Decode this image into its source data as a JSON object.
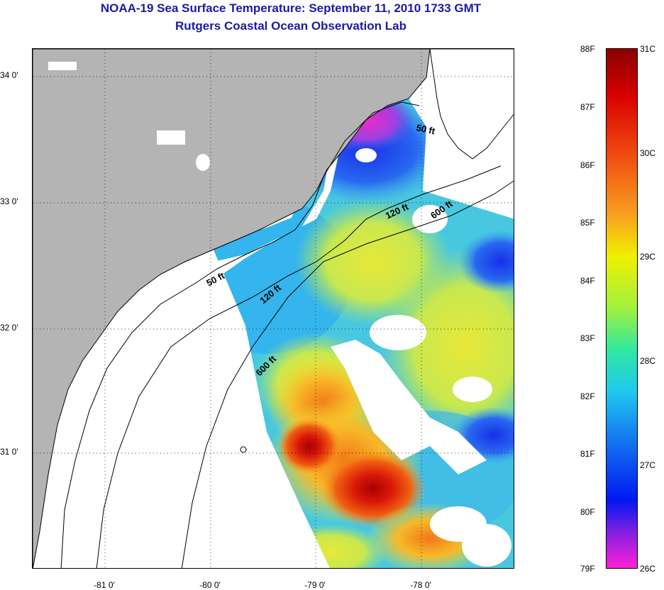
{
  "header": {
    "title": "NOAA-19 Sea Surface Temperature:  September 11, 2010 1733 GMT",
    "subtitle": "Rutgers Coastal Ocean Observation Lab"
  },
  "map": {
    "lat_labels": [
      "34 0'",
      "33 0'",
      "32 0'",
      "31 0'"
    ],
    "lon_labels": [
      "-81 0'",
      "-80 0'",
      "-79 0'",
      "-78 0'"
    ],
    "contour_labels": [
      "50 ft",
      "120 ft",
      "600 ft",
      "50 ft",
      "120 ft",
      "600 ft"
    ],
    "colors": {
      "land": "#b4b4b4",
      "no_data": "#ffffff",
      "contour": "#000000"
    }
  },
  "colorbar": {
    "fahrenheit_labels": [
      "88F",
      "87F",
      "86F",
      "85F",
      "84F",
      "83F",
      "82F",
      "81F",
      "80F",
      "79F"
    ],
    "celsius_labels": [
      "31C",
      "30C",
      "29C",
      "28C",
      "27C",
      "26C"
    ],
    "fahrenheit_range": [
      79,
      88
    ],
    "celsius_range": [
      26,
      31
    ]
  }
}
